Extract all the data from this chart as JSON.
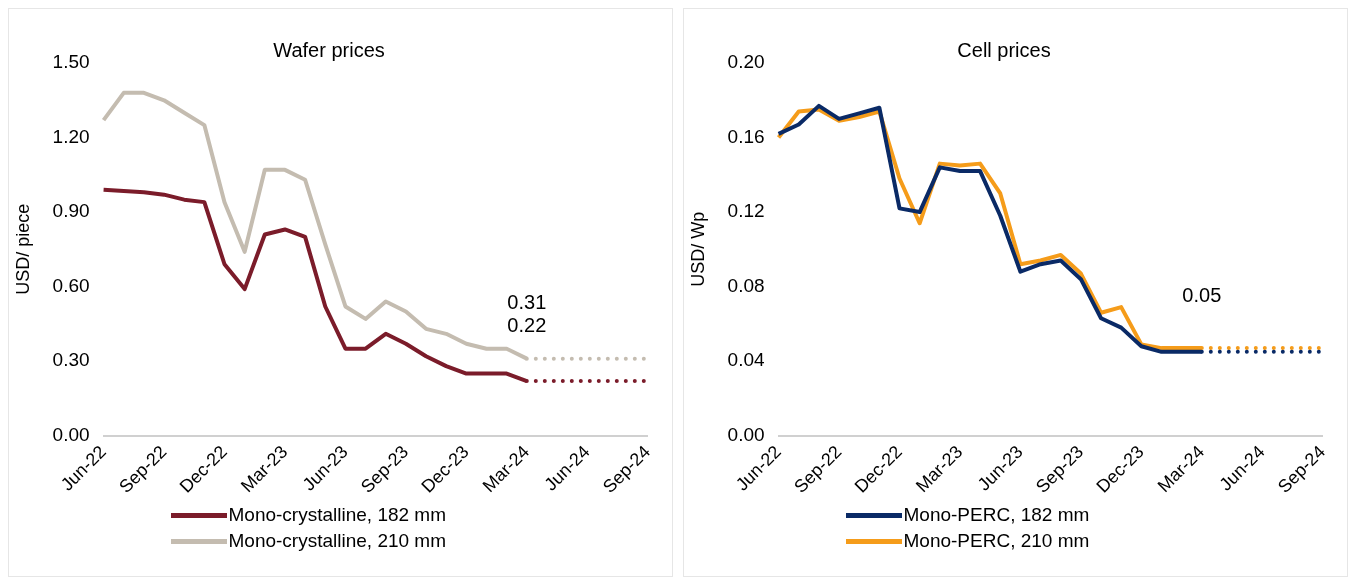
{
  "chart_data": [
    {
      "type": "line",
      "title": "Wafer prices",
      "ylabel": "USD/ piece",
      "categories": [
        "Jun-22",
        null,
        null,
        "Sep-22",
        null,
        null,
        "Dec-22",
        null,
        null,
        "Mar-23",
        null,
        null,
        "Jun-23",
        null,
        null,
        "Sep-23",
        null,
        null,
        "Dec-23",
        null,
        null,
        "Mar-24",
        null,
        null,
        "Jun-24",
        null,
        null,
        "Sep-24"
      ],
      "series": [
        {
          "name": "Mono-crystalline, 182 mm",
          "color": "#7b1c2a",
          "values": [
            0.99,
            0.985,
            0.98,
            0.97,
            0.95,
            0.94,
            0.69,
            0.59,
            0.81,
            0.83,
            0.8,
            0.52,
            0.35,
            0.35,
            0.41,
            0.37,
            0.32,
            0.28,
            0.25,
            0.25,
            0.25,
            0.22,
            null,
            null,
            null,
            null,
            null,
            null
          ]
        },
        {
          "name": "Mono-crystalline, 210 mm",
          "color": "#c4bcb0",
          "values": [
            1.27,
            1.38,
            1.38,
            1.35,
            1.3,
            1.25,
            0.94,
            0.74,
            1.07,
            1.07,
            1.03,
            0.77,
            0.52,
            0.47,
            0.54,
            0.5,
            0.43,
            0.41,
            0.37,
            0.35,
            0.35,
            0.31,
            null,
            null,
            null,
            null,
            null,
            null
          ]
        },
        {
          "color": "#7b1c2a",
          "line_style": "dotted",
          "values": [
            null,
            null,
            null,
            null,
            null,
            null,
            null,
            null,
            null,
            null,
            null,
            null,
            null,
            null,
            null,
            null,
            null,
            null,
            null,
            null,
            null,
            0.22,
            0.22,
            0.22,
            0.22,
            0.22,
            0.22,
            0.22
          ]
        },
        {
          "color": "#c4bcb0",
          "line_style": "dotted",
          "values": [
            null,
            null,
            null,
            null,
            null,
            null,
            null,
            null,
            null,
            null,
            null,
            null,
            null,
            null,
            null,
            null,
            null,
            null,
            null,
            null,
            null,
            0.31,
            0.31,
            0.31,
            0.31,
            0.31,
            0.31,
            0.31
          ]
        }
      ],
      "ylim": [
        0,
        1.5
      ],
      "yticks": [
        {
          "value": 0,
          "label": "0.00"
        },
        {
          "value": 0.3,
          "label": "0.30"
        },
        {
          "value": 0.6,
          "label": "0.60"
        },
        {
          "value": 0.9,
          "label": "0.90"
        },
        {
          "value": 1.2,
          "label": "1.20"
        },
        {
          "value": 1.5,
          "label": "1.50"
        }
      ],
      "annotations": [
        {
          "text": "0.31",
          "x": "Mar-24",
          "y": 0.31
        },
        {
          "text": "0.22",
          "x": "Mar-24",
          "y": 0.22
        }
      ],
      "grid": false,
      "legend": "bottom",
      "marker": "none",
      "line_style": "solid"
    },
    {
      "type": "line",
      "title": "Cell prices",
      "ylabel": "USD/ Wp",
      "categories": [
        "Jun-22",
        null,
        null,
        "Sep-22",
        null,
        null,
        "Dec-22",
        null,
        null,
        "Mar-23",
        null,
        null,
        "Jun-23",
        null,
        null,
        "Sep-23",
        null,
        null,
        "Dec-23",
        null,
        null,
        "Mar-24",
        null,
        null,
        "Jun-24",
        null,
        null,
        "Sep-24"
      ],
      "series": [
        {
          "name": "Mono-PERC, 182 mm",
          "color": "#0a2a66",
          "values": [
            0.162,
            0.167,
            0.177,
            0.17,
            0.173,
            0.176,
            0.122,
            0.12,
            0.144,
            0.142,
            0.142,
            0.118,
            0.088,
            0.092,
            0.094,
            0.084,
            0.063,
            0.058,
            0.048,
            0.045,
            0.045,
            0.045,
            null,
            null,
            null,
            null,
            null,
            null
          ]
        },
        {
          "name": "Mono-PERC, 210 mm",
          "color": "#f59c1a",
          "values": [
            0.16,
            0.174,
            0.175,
            0.169,
            0.171,
            0.174,
            0.138,
            0.114,
            0.146,
            0.145,
            0.146,
            0.13,
            0.092,
            0.094,
            0.097,
            0.087,
            0.066,
            0.069,
            0.049,
            0.047,
            0.047,
            0.047,
            null,
            null,
            null,
            null,
            null,
            null
          ]
        },
        {
          "color": "#0a2a66",
          "line_style": "dotted",
          "values": [
            null,
            null,
            null,
            null,
            null,
            null,
            null,
            null,
            null,
            null,
            null,
            null,
            null,
            null,
            null,
            null,
            null,
            null,
            null,
            null,
            null,
            0.045,
            0.045,
            0.045,
            0.045,
            0.045,
            0.045,
            0.045
          ]
        },
        {
          "color": "#f59c1a",
          "line_style": "dotted",
          "values": [
            null,
            null,
            null,
            null,
            null,
            null,
            null,
            null,
            null,
            null,
            null,
            null,
            null,
            null,
            null,
            null,
            null,
            null,
            null,
            null,
            null,
            0.047,
            0.047,
            0.047,
            0.047,
            0.047,
            0.047,
            0.047
          ]
        }
      ],
      "ylim": [
        0,
        0.2
      ],
      "yticks": [
        {
          "value": 0,
          "label": "0.00"
        },
        {
          "value": 0.04,
          "label": "0.04"
        },
        {
          "value": 0.08,
          "label": "0.08"
        },
        {
          "value": 0.12,
          "label": "0.12"
        },
        {
          "value": 0.16,
          "label": "0.16"
        },
        {
          "value": 0.2,
          "label": "0.20"
        }
      ],
      "annotations": [
        {
          "text": "0.05",
          "x": "Mar-24",
          "y": 0.045
        }
      ],
      "grid": false,
      "legend": "bottom",
      "marker": "none",
      "line_style": "solid"
    }
  ]
}
